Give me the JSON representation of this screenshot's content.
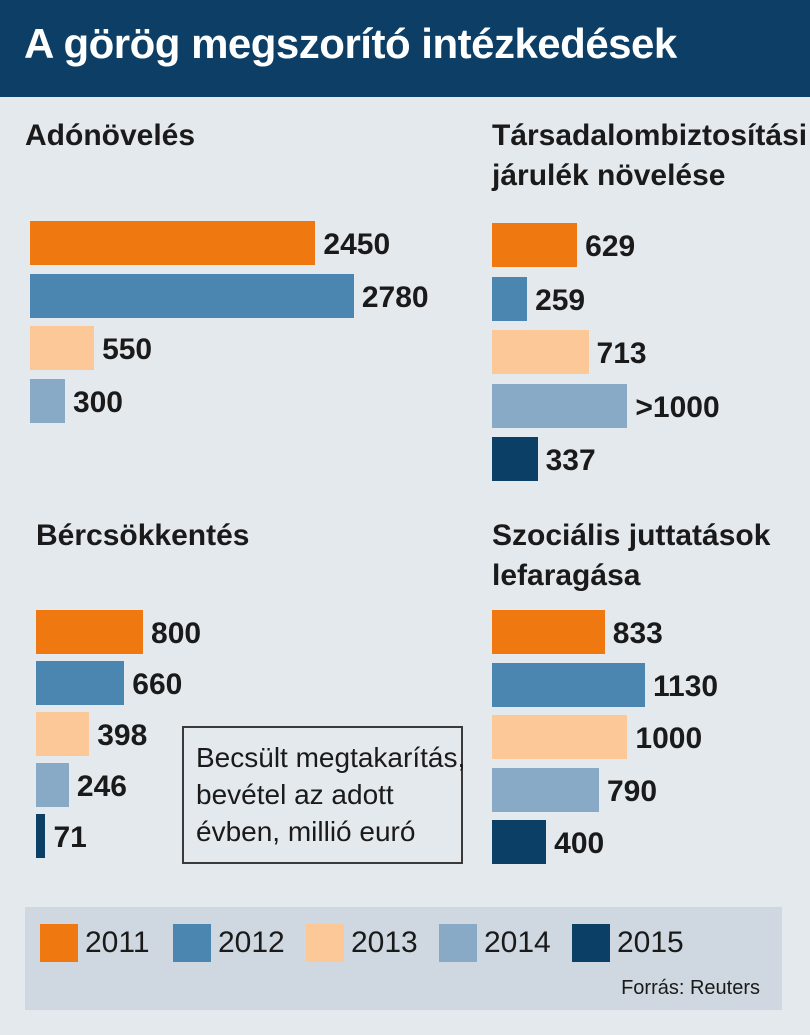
{
  "header": {
    "title": "A görög megszorító intézkedések"
  },
  "colors": {
    "2011": "#f07810",
    "2012": "#4a86b0",
    "2013": "#fcc898",
    "2014": "#88aac6",
    "2015": "#0b3f66",
    "header_bg": "#0d3f66",
    "background": "#e4e9ee"
  },
  "chart_data": [
    {
      "type": "bar",
      "orientation": "horizontal",
      "title": "Adónövelés",
      "categories": [
        "2011",
        "2012",
        "2013",
        "2014"
      ],
      "values": [
        2450,
        2780,
        550,
        300
      ],
      "value_labels": [
        "2450",
        "2780",
        "550",
        "300"
      ]
    },
    {
      "type": "bar",
      "orientation": "horizontal",
      "title": "Társadalombiztosítási járulék növelése",
      "title_lines": [
        "Társadalombiztosítási",
        "járulék növelése"
      ],
      "categories": [
        "2011",
        "2012",
        "2013",
        "2014",
        "2015"
      ],
      "values": [
        629,
        259,
        713,
        1000,
        337
      ],
      "value_labels": [
        "629",
        "259",
        "713",
        ">1000",
        "337"
      ]
    },
    {
      "type": "bar",
      "orientation": "horizontal",
      "title": "Bércsökkentés",
      "categories": [
        "2011",
        "2012",
        "2013",
        "2014",
        "2015"
      ],
      "values": [
        800,
        660,
        398,
        246,
        71
      ],
      "value_labels": [
        "800",
        "660",
        "398",
        "246",
        "71"
      ]
    },
    {
      "type": "bar",
      "orientation": "horizontal",
      "title": "Szociális juttatások lefaragása",
      "title_lines": [
        "Szociális juttatások",
        "lefaragása"
      ],
      "categories": [
        "2011",
        "2012",
        "2013",
        "2014",
        "2015"
      ],
      "values": [
        833,
        1130,
        1000,
        790,
        400
      ],
      "value_labels": [
        "833",
        "1130",
        "1000",
        "790",
        "400"
      ]
    }
  ],
  "note": {
    "lines": [
      "Becsült megtakarítás,",
      "bevétel az adott",
      "évben, millió euró"
    ]
  },
  "legend": {
    "items": [
      "2011",
      "2012",
      "2013",
      "2014",
      "2015"
    ]
  },
  "source": "Forrás: Reuters"
}
